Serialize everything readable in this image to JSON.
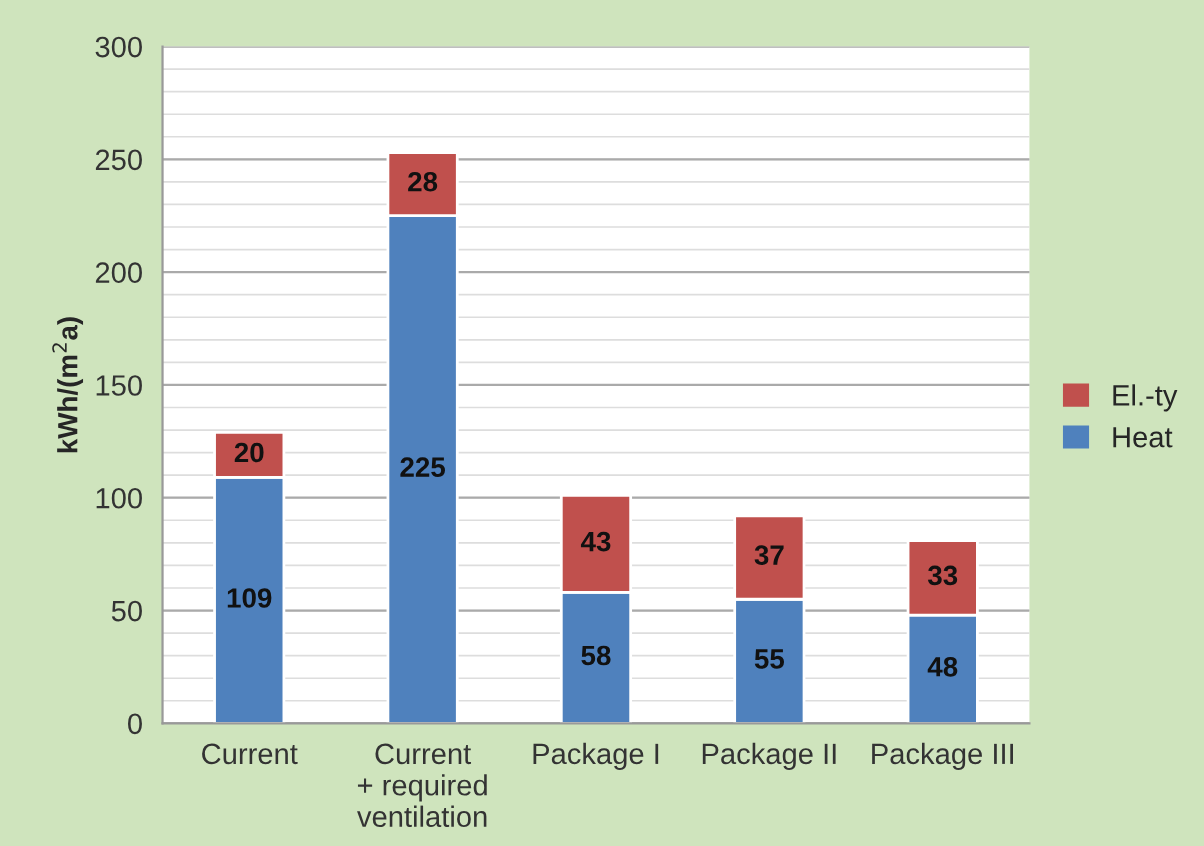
{
  "chart_data": {
    "type": "bar",
    "stacked": true,
    "ylabel": "kWh/(m$^{2}$a)",
    "categories": [
      "Current",
      "Current\n+ required\nventilation",
      "Package I",
      "Package II",
      "Package III"
    ],
    "series": [
      {
        "name": "Heat",
        "color": "#4f81bd",
        "values": [
          109,
          225,
          58,
          55,
          48
        ]
      },
      {
        "name": "El.-ty",
        "color": "#c0504d",
        "values": [
          20,
          28,
          43,
          37,
          33
        ]
      }
    ],
    "ylim": [
      0,
      300
    ],
    "yticks": [
      0,
      50,
      100,
      150,
      200,
      250,
      300
    ],
    "grid": "y",
    "legend": "right",
    "data_labels": true
  }
}
